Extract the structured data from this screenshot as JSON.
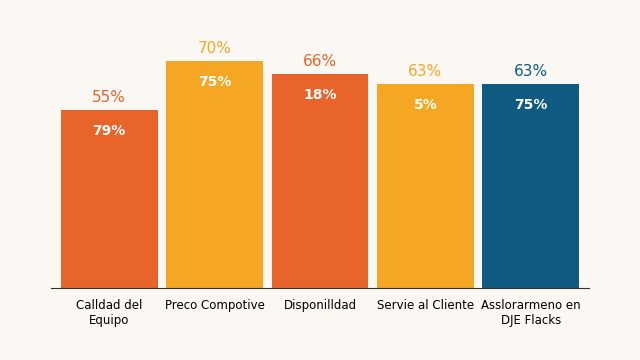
{
  "chart_data": {
    "type": "bar",
    "categories": [
      "Calldad del\nEquipo",
      "Preco Compotive",
      "Disponilldad",
      "Servie al Cliente",
      "Asslorarmeno en\nDJE Flacks"
    ],
    "values": [
      55,
      70,
      66,
      63,
      63
    ],
    "value_labels": [
      "55%",
      "70%",
      "66%",
      "63%",
      "63%"
    ],
    "inner_values": [
      79,
      75,
      18,
      5,
      75
    ],
    "inner_labels": [
      "79%",
      "75%",
      "18%",
      "5%",
      "75%"
    ],
    "colors": [
      "#e8642a",
      "#f5a623",
      "#e8642a",
      "#f5a623",
      "#0e5a80"
    ],
    "ylim": [
      0,
      80
    ],
    "data_labels": true,
    "tick_labels": "x",
    "grid": false
  }
}
